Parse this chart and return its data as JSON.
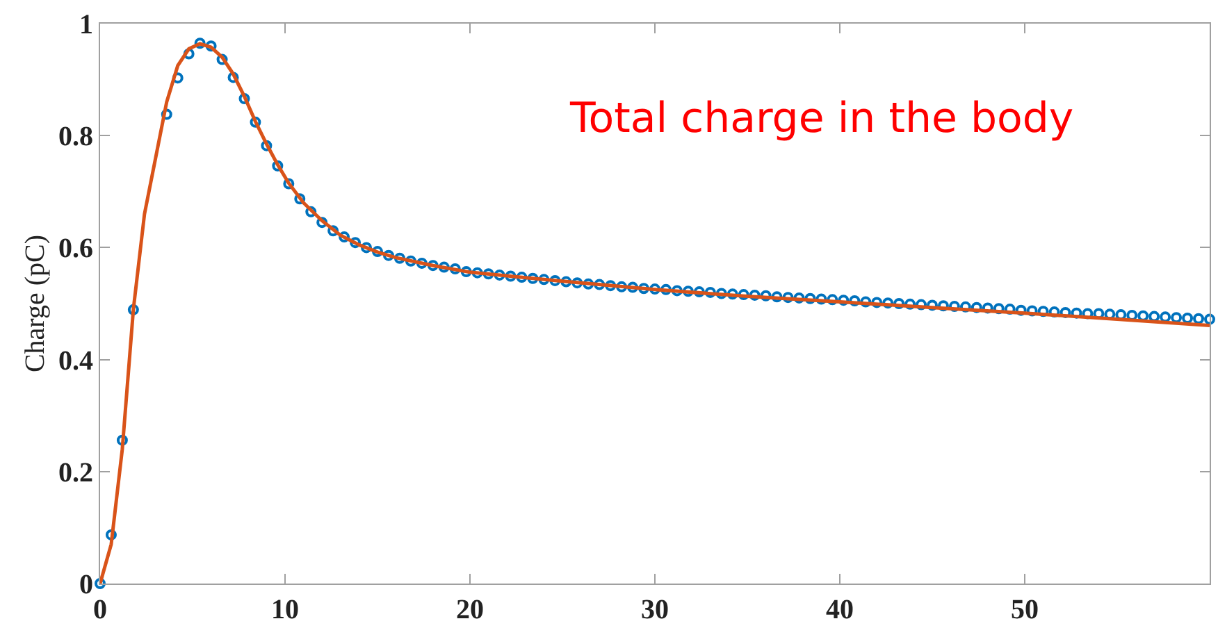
{
  "chart_data": {
    "type": "scatter",
    "ylabel": "Charge (pC)",
    "annotations": [
      "Total charge in the body"
    ],
    "xlim": [
      0,
      60
    ],
    "xticks": [
      0,
      10,
      20,
      30,
      40,
      50
    ],
    "ylim": [
      0,
      1
    ],
    "yticks": [
      0,
      0.2,
      0.4,
      0.6,
      0.8,
      1
    ],
    "grid": false,
    "series": [
      {
        "color": "#0072bd",
        "marker": "circle",
        "x": [
          0,
          0.6,
          1.2,
          1.8,
          2.4,
          3,
          3.6,
          4.2,
          4.8,
          5.4,
          6,
          6.6,
          7.2,
          7.8,
          8.4,
          9,
          9.6,
          10.2,
          10.8,
          11.4,
          12,
          12.6,
          13.2,
          13.8,
          14.4,
          15,
          15.6,
          16.2,
          16.8,
          17.4,
          18,
          18.6,
          19.2,
          19.8,
          20.4,
          21,
          21.6,
          22.2,
          22.8,
          23.4,
          24,
          24.6,
          25.2,
          25.8,
          26.4,
          27,
          27.6,
          28.2,
          28.8,
          29.4,
          30,
          30.6,
          31.2,
          31.8,
          32.4,
          33,
          33.6,
          34.2,
          34.8,
          35.4,
          36,
          36.6,
          37.2,
          37.8,
          38.4,
          39,
          39.6,
          40.2,
          40.8,
          41.4,
          42,
          42.6,
          43.2,
          43.8,
          44.4,
          45,
          45.6,
          46.2,
          46.8,
          47.4,
          48,
          48.6,
          49.2,
          49.8,
          50.4,
          51,
          51.6,
          52.2,
          52.8,
          53.4,
          54,
          54.6,
          55.2,
          55.8,
          56.4,
          57,
          57.6,
          58.2,
          58.8,
          59.4,
          60
        ],
        "values": [
          0,
          0.087,
          0.256,
          0.489,
          null,
          null,
          0.838,
          0.903,
          0.946,
          0.965,
          0.96,
          0.936,
          0.904,
          0.866,
          0.824,
          0.782,
          0.746,
          0.714,
          0.687,
          0.664,
          0.645,
          0.63,
          0.619,
          0.609,
          0.6,
          0.593,
          0.586,
          0.581,
          0.576,
          0.572,
          0.568,
          0.565,
          0.562,
          0.557,
          0.555,
          0.553,
          0.551,
          0.549,
          0.547,
          0.545,
          0.543,
          0.541,
          0.539,
          0.537,
          0.535,
          0.534,
          0.532,
          0.53,
          0.529,
          0.527,
          0.526,
          0.525,
          0.523,
          0.522,
          0.521,
          0.52,
          0.518,
          0.517,
          0.516,
          0.515,
          0.514,
          0.512,
          0.511,
          0.51,
          0.509,
          0.508,
          0.507,
          0.506,
          0.505,
          0.503,
          0.502,
          0.501,
          0.5,
          0.499,
          0.498,
          0.497,
          0.496,
          0.495,
          0.494,
          0.493,
          0.492,
          0.491,
          0.49,
          0.488,
          0.487,
          0.486,
          0.485,
          0.484,
          0.483,
          0.482,
          0.482,
          0.481,
          0.48,
          0.479,
          0.478,
          0.477,
          0.476,
          0.475,
          0.474,
          0.473,
          0.472
        ]
      },
      {
        "type": "line",
        "marker": "none",
        "color": "#d95319",
        "x": [
          0,
          0.6,
          1.2,
          1.8,
          2.4,
          3,
          3.6,
          4.2,
          4.8,
          5.4,
          6,
          6.6,
          7.2,
          7.8,
          8.4,
          9,
          9.6,
          10.2,
          11,
          12,
          13,
          14,
          15,
          16,
          18,
          20,
          25,
          30,
          35,
          40,
          45,
          50,
          55,
          60
        ],
        "values": [
          0,
          0.07,
          0.24,
          0.49,
          0.66,
          0.76,
          0.86,
          0.925,
          0.955,
          0.964,
          0.958,
          0.94,
          0.91,
          0.87,
          0.825,
          0.785,
          0.748,
          0.715,
          0.68,
          0.648,
          0.622,
          0.605,
          0.592,
          0.582,
          0.568,
          0.556,
          0.54,
          0.525,
          0.513,
          0.503,
          0.493,
          0.483,
          0.472,
          0.461
        ]
      }
    ]
  }
}
